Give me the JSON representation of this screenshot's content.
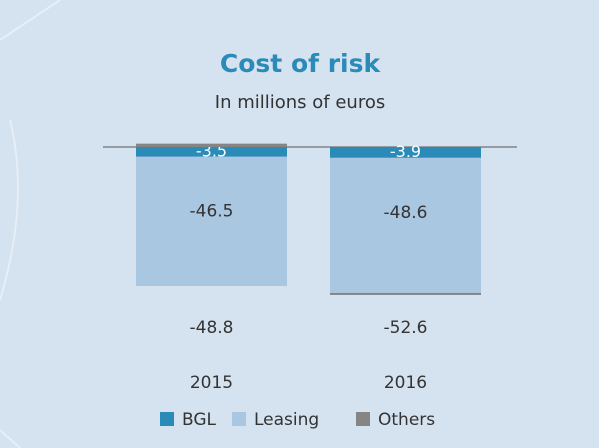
{
  "chart_data": {
    "type": "stacked_bar",
    "title": "Cost of risk",
    "subtitle": "In millions of euros",
    "categories": [
      "2015",
      "2016"
    ],
    "series": [
      {
        "name": "BGL",
        "color": "#2a8ab8",
        "values": [
          -3.5,
          -3.9
        ]
      },
      {
        "name": "Leasing",
        "color": "#a9c7e1",
        "values": [
          -46.5,
          -48.6
        ]
      },
      {
        "name": "Others",
        "color": "#858585",
        "values": [
          1.2,
          -0.1
        ]
      }
    ],
    "totals": [
      -48.8,
      -52.6
    ],
    "legend": "bottom"
  }
}
